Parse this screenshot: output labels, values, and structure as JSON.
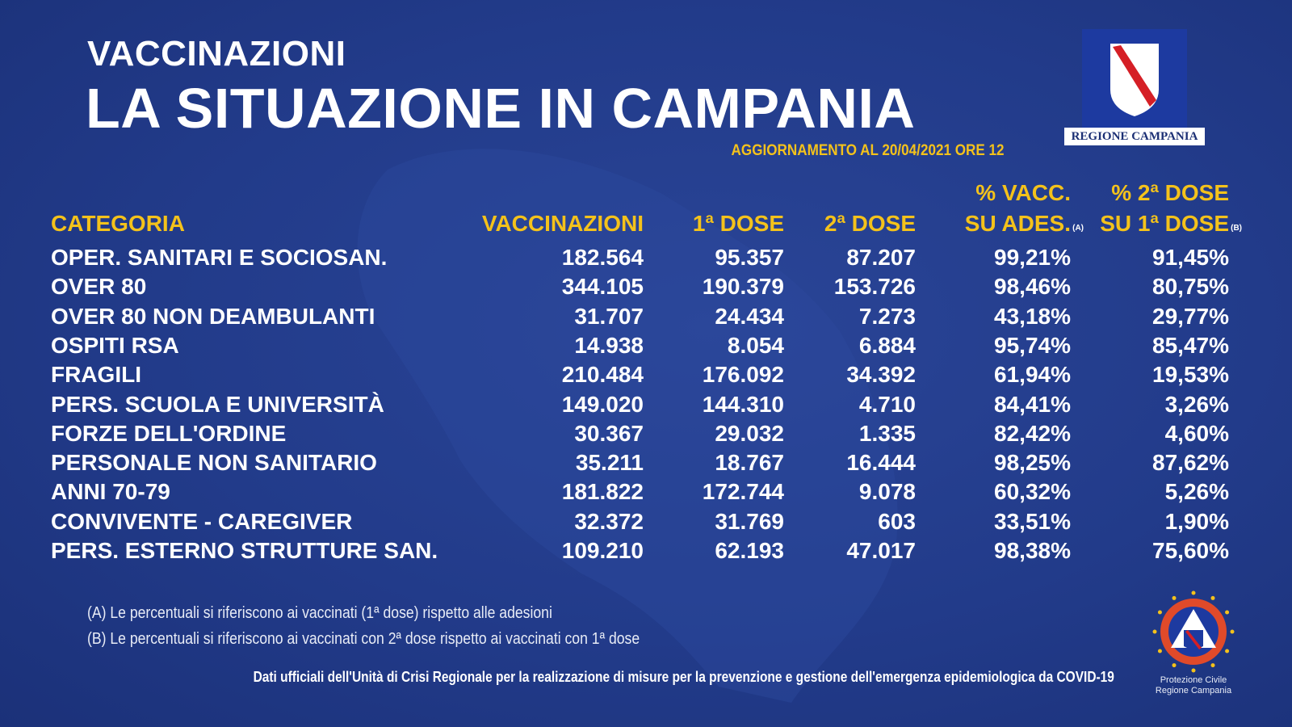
{
  "header": {
    "kicker": "VACCINAZIONI",
    "title": "LA SITUAZIONE IN CAMPANIA",
    "update": "AGGIORNAMENTO AL 20/04/2021 ORE 12"
  },
  "logo": {
    "label": "REGIONE CAMPANIA"
  },
  "table": {
    "columns": [
      {
        "lines": [
          "CATEGORIA"
        ]
      },
      {
        "lines": [
          "VACCINAZIONI"
        ]
      },
      {
        "lines": [
          "1ª DOSE"
        ]
      },
      {
        "lines": [
          "2ª DOSE"
        ]
      },
      {
        "lines": [
          "% VACC.",
          "SU ADES."
        ],
        "note": "(A)"
      },
      {
        "lines": [
          "% 2ª DOSE",
          "SU 1ª DOSE"
        ],
        "note": "(B)"
      }
    ],
    "rows": [
      [
        "OPER. SANITARI E SOCIOSAN.",
        "182.564",
        "95.357",
        "87.207",
        "99,21%",
        "91,45%"
      ],
      [
        "OVER 80",
        "344.105",
        "190.379",
        "153.726",
        "98,46%",
        "80,75%"
      ],
      [
        "OVER 80 NON DEAMBULANTI",
        "31.707",
        "24.434",
        "7.273",
        "43,18%",
        "29,77%"
      ],
      [
        "OSPITI RSA",
        "14.938",
        "8.054",
        "6.884",
        "95,74%",
        "85,47%"
      ],
      [
        "FRAGILI",
        "210.484",
        "176.092",
        "34.392",
        "61,94%",
        "19,53%"
      ],
      [
        "PERS. SCUOLA E UNIVERSITÀ",
        "149.020",
        "144.310",
        "4.710",
        "84,41%",
        "3,26%"
      ],
      [
        "FORZE DELL'ORDINE",
        "30.367",
        "29.032",
        "1.335",
        "82,42%",
        "4,60%"
      ],
      [
        "PERSONALE NON SANITARIO",
        "35.211",
        "18.767",
        "16.444",
        "98,25%",
        "87,62%"
      ],
      [
        "ANNI 70-79",
        "181.822",
        "172.744",
        "9.078",
        "60,32%",
        "5,26%"
      ],
      [
        "CONVIVENTE - CAREGIVER",
        "32.372",
        "31.769",
        "603",
        "33,51%",
        "1,90%"
      ],
      [
        "PERS. ESTERNO STRUTTURE SAN.",
        "109.210",
        "62.193",
        "47.017",
        "98,38%",
        "75,60%"
      ]
    ]
  },
  "footnotes": [
    "(A) Le percentuali si riferiscono ai vaccinati (1ª dose) rispetto alle adesioni",
    "(B) Le percentuali si riferiscono ai vaccinati con 2ª dose rispetto ai vaccinati con 1ª dose"
  ],
  "source": "Dati ufficiali dell'Unità di Crisi Regionale per la realizzazione di misure per la prevenzione e gestione dell'emergenza epidemiologica da COVID-19",
  "civil_protection": {
    "lines": [
      "Protezione Civile",
      "Regione Campania"
    ]
  }
}
